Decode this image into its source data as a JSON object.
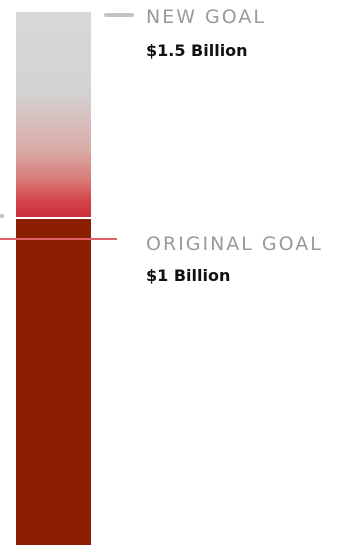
{
  "colors": {
    "upper_gradient_top": "#d8d8d8",
    "upper_gradient_bottom": "#cc2f3d",
    "lower_fill": "#8b1e00",
    "original_goal_line": "#e06067",
    "label_gray": "#9a9a9a"
  },
  "goals": {
    "new": {
      "title": "NEW GOAL",
      "value": "$1.5 Billion"
    },
    "original": {
      "title": "ORIGINAL GOAL",
      "value": "$1 Billion"
    }
  }
}
